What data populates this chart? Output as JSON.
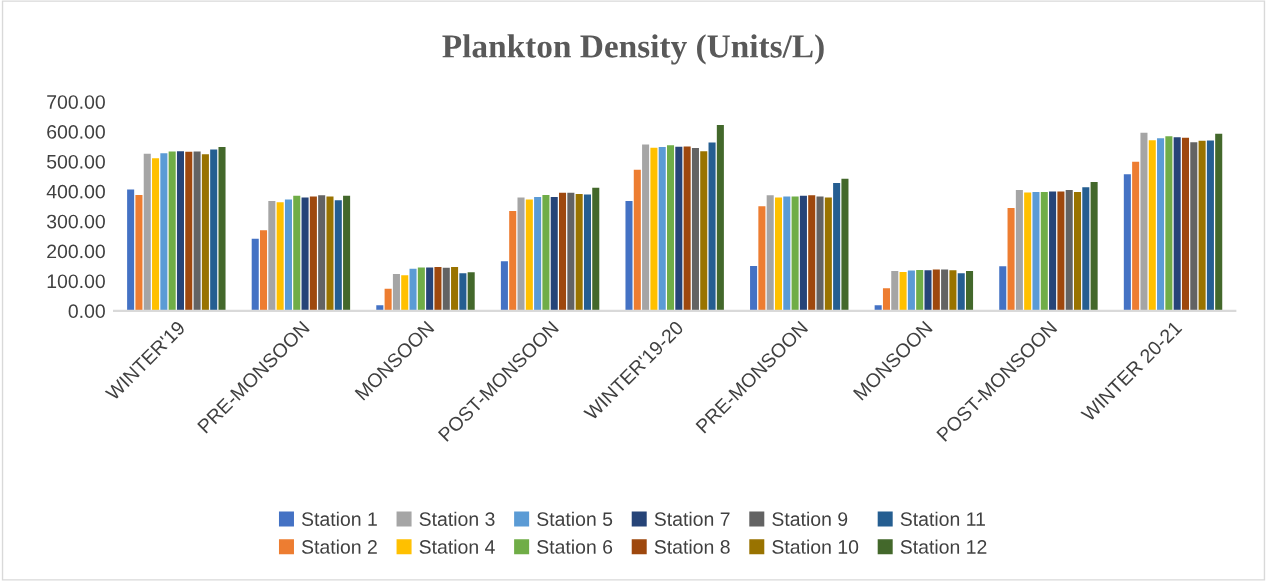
{
  "chart_data": {
    "type": "bar",
    "title": "Plankton Density (Units/L)",
    "categories": [
      "WINTER'19",
      "PRE-MONSOON",
      "MONSOON",
      "POST-MONSOON",
      "WINTER'19-20",
      "PRE-MONSOON",
      "MONSOON",
      "POST-MONSOON",
      "WINTER 20-21"
    ],
    "series": [
      {
        "name": "Station 1",
        "color": "#4472c4",
        "values": [
          406,
          241,
          19,
          166,
          368,
          150,
          19,
          149,
          457
        ]
      },
      {
        "name": "Station 2",
        "color": "#ed7d31",
        "values": [
          388,
          270,
          74,
          334,
          472,
          350,
          76,
          344,
          499
        ]
      },
      {
        "name": "Station 3",
        "color": "#a5a5a5",
        "values": [
          526,
          368,
          123,
          379,
          557,
          387,
          133,
          404,
          596
        ]
      },
      {
        "name": "Station 4",
        "color": "#ffc000",
        "values": [
          511,
          363,
          119,
          373,
          546,
          379,
          130,
          396,
          571
        ]
      },
      {
        "name": "Station 5",
        "color": "#5b9bd5",
        "values": [
          527,
          373,
          141,
          381,
          548,
          383,
          135,
          398,
          578
        ]
      },
      {
        "name": "Station 6",
        "color": "#70ad47",
        "values": [
          533,
          385,
          145,
          388,
          554,
          383,
          137,
          398,
          584
        ]
      },
      {
        "name": "Station 7",
        "color": "#264478",
        "values": [
          534,
          379,
          145,
          381,
          549,
          385,
          136,
          399,
          581
        ]
      },
      {
        "name": "Station 8",
        "color": "#9e480e",
        "values": [
          532,
          383,
          147,
          395,
          550,
          387,
          138,
          399,
          579
        ]
      },
      {
        "name": "Station 9",
        "color": "#636363",
        "values": [
          533,
          387,
          144,
          395,
          545,
          383,
          138,
          404,
          564
        ]
      },
      {
        "name": "Station 10",
        "color": "#997300",
        "values": [
          524,
          383,
          147,
          391,
          534,
          379,
          136,
          398,
          569
        ]
      },
      {
        "name": "Station 11",
        "color": "#255e91",
        "values": [
          540,
          370,
          126,
          389,
          563,
          428,
          126,
          414,
          570
        ]
      },
      {
        "name": "Station 12",
        "color": "#43682b",
        "values": [
          548,
          385,
          129,
          412,
          622,
          442,
          133,
          431,
          593
        ]
      }
    ],
    "ylim": [
      0,
      700
    ],
    "yticks": [
      {
        "value": 0,
        "label": "0.00"
      },
      {
        "value": 100,
        "label": "100.00"
      },
      {
        "value": 200,
        "label": "200.00"
      },
      {
        "value": 300,
        "label": "300.00"
      },
      {
        "value": 400,
        "label": "400.00"
      },
      {
        "value": 500,
        "label": "500.00"
      },
      {
        "value": 600,
        "label": "600.00"
      },
      {
        "value": 700,
        "label": "700.00"
      }
    ],
    "grid": false,
    "legend": "bottom"
  }
}
